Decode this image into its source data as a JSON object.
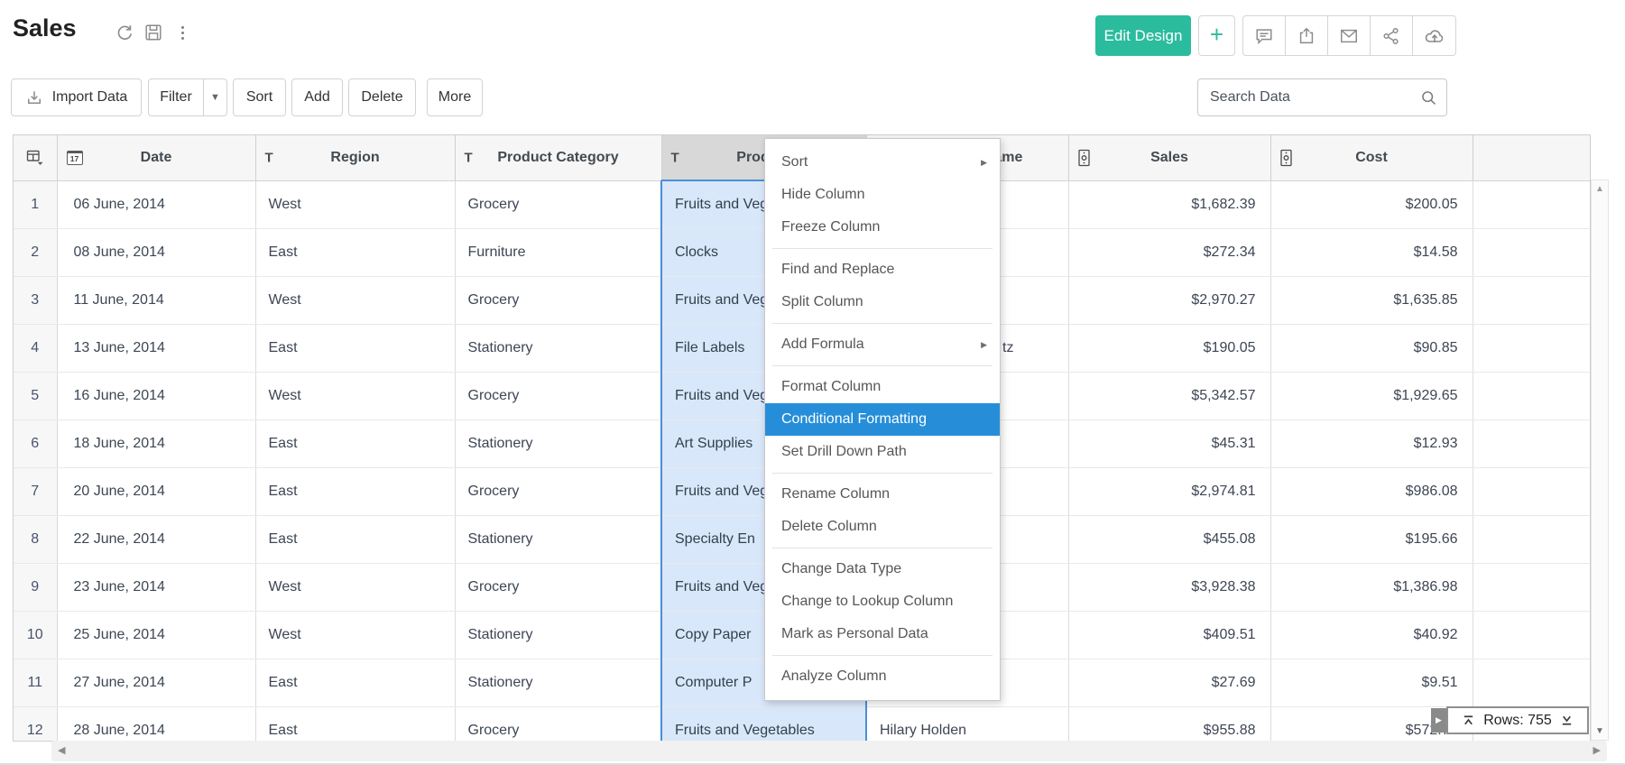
{
  "header": {
    "title": "Sales",
    "edit_design_label": "Edit Design",
    "plus_label": "+"
  },
  "toolbar": {
    "import_label": "Import Data",
    "filter_label": "Filter",
    "sort_label": "Sort",
    "add_label": "Add",
    "delete_label": "Delete",
    "more_label": "More",
    "search_placeholder": "Search Data"
  },
  "table": {
    "columns": [
      {
        "label": "",
        "type": "selector"
      },
      {
        "label": "Date",
        "type": "date"
      },
      {
        "label": "Region",
        "type": "text"
      },
      {
        "label": "Product Category",
        "type": "text"
      },
      {
        "label": "Product",
        "type": "text",
        "selected": true
      },
      {
        "label": "Customer Name",
        "type": "text"
      },
      {
        "label": "Sales",
        "type": "currency"
      },
      {
        "label": "Cost",
        "type": "currency"
      },
      {
        "label": "",
        "type": "none"
      }
    ],
    "rows": [
      {
        "num": "1",
        "date": "06 June, 2014",
        "region": "West",
        "category": "Grocery",
        "product": "Fruits and Vegetables",
        "name": "",
        "sales": "$1,682.39",
        "cost": "$200.05"
      },
      {
        "num": "2",
        "date": "08 June, 2014",
        "region": "East",
        "category": "Furniture",
        "product": "Clocks",
        "name": "",
        "sales": "$272.34",
        "cost": "$14.58"
      },
      {
        "num": "3",
        "date": "11 June, 2014",
        "region": "West",
        "category": "Grocery",
        "product": "Fruits and Vegetables",
        "name": "",
        "sales": "$2,970.27",
        "cost": "$1,635.85"
      },
      {
        "num": "4",
        "date": "13 June, 2014",
        "region": "East",
        "category": "Stationery",
        "product": "File Labels",
        "name": "tz",
        "name_fragment": true,
        "sales": "$190.05",
        "cost": "$90.85"
      },
      {
        "num": "5",
        "date": "16 June, 2014",
        "region": "West",
        "category": "Grocery",
        "product": "Fruits and Vegetables",
        "name": "",
        "sales": "$5,342.57",
        "cost": "$1,929.65"
      },
      {
        "num": "6",
        "date": "18 June, 2014",
        "region": "East",
        "category": "Stationery",
        "product": "Art Supplies",
        "name": "",
        "sales": "$45.31",
        "cost": "$12.93"
      },
      {
        "num": "7",
        "date": "20 June, 2014",
        "region": "East",
        "category": "Grocery",
        "product": "Fruits and Vegetables",
        "name": "",
        "sales": "$2,974.81",
        "cost": "$986.08"
      },
      {
        "num": "8",
        "date": "22 June, 2014",
        "region": "East",
        "category": "Stationery",
        "product": "Specialty En",
        "name": "",
        "sales": "$455.08",
        "cost": "$195.66"
      },
      {
        "num": "9",
        "date": "23 June, 2014",
        "region": "West",
        "category": "Grocery",
        "product": "Fruits and Vegetables",
        "name": "",
        "sales": "$3,928.38",
        "cost": "$1,386.98"
      },
      {
        "num": "10",
        "date": "25 June, 2014",
        "region": "West",
        "category": "Stationery",
        "product": "Copy Paper",
        "name": "",
        "sales": "$409.51",
        "cost": "$40.92"
      },
      {
        "num": "11",
        "date": "27 June, 2014",
        "region": "East",
        "category": "Stationery",
        "product": "Computer P",
        "name": "",
        "sales": "$27.69",
        "cost": "$9.51"
      },
      {
        "num": "12",
        "date": "28 June, 2014",
        "region": "East",
        "category": "Grocery",
        "product": "Fruits and Vegetables",
        "name": "Hilary Holden",
        "sales": "$955.88",
        "cost": "$572.73"
      }
    ]
  },
  "context_menu": {
    "items": [
      {
        "label": "Sort",
        "submenu": true
      },
      {
        "label": "Hide Column"
      },
      {
        "label": "Freeze Column",
        "divider_after": true
      },
      {
        "label": "Find and Replace"
      },
      {
        "label": "Split Column",
        "divider_after": true
      },
      {
        "label": "Add Formula",
        "submenu": true,
        "divider_after": true
      },
      {
        "label": "Format Column"
      },
      {
        "label": "Conditional Formatting",
        "selected": true
      },
      {
        "label": "Set Drill Down Path",
        "divider_after": true
      },
      {
        "label": "Rename Column"
      },
      {
        "label": "Delete Column",
        "divider_after": true
      },
      {
        "label": "Change Data Type"
      },
      {
        "label": "Change to Lookup Column"
      },
      {
        "label": "Mark as Personal Data",
        "divider_after": true
      },
      {
        "label": "Analyze Column"
      }
    ]
  },
  "status": {
    "rows_label": "Rows: 755"
  },
  "colors": {
    "accent_teal": "#2bbc9e",
    "menu_highlight": "#268ed9",
    "selected_column_bg": "#d9e7fa",
    "selected_column_border": "#4b8fd6"
  }
}
